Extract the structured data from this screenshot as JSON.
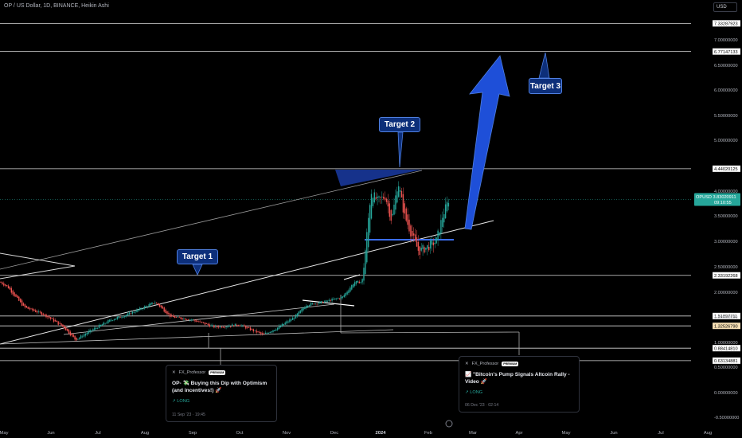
{
  "header": {
    "title": "OP / US Dollar, 1D, BINANCE, Heikin Ashi",
    "currency": "USD"
  },
  "chart_data": {
    "type": "candlestick",
    "ylim": [
      -0.5,
      7.5
    ],
    "y_ticks": [
      "7.00000000",
      "6.50000000",
      "6.00000000",
      "5.50000000",
      "5.00000000",
      "4.00000000",
      "3.50000000",
      "3.00000000",
      "2.50000000",
      "2.00000000",
      "1.50000000",
      "1.00000000",
      "0.50000000",
      "0.00000000",
      "-0.50000000"
    ],
    "x_ticks": [
      "May",
      "Jun",
      "Jul",
      "Aug",
      "Sep",
      "Oct",
      "Nov",
      "Dec",
      "2024",
      "Feb",
      "Mar",
      "Apr",
      "May",
      "Jun",
      "Jul",
      "Aug"
    ],
    "horizontal_levels": [
      {
        "label": "7.33287923",
        "value": 7.333
      },
      {
        "label": "6.77147133",
        "value": 6.771
      },
      {
        "label": "4.44020125",
        "value": 4.44
      },
      {
        "label": "2.33192268",
        "value": 2.332
      },
      {
        "label": "1.51897711",
        "value": 1.519
      },
      {
        "label": "1.32526790",
        "value": 1.325
      },
      {
        "label": "0.88414810",
        "value": 0.884
      },
      {
        "label": "0.63134881",
        "value": 0.631
      }
    ],
    "price_marker": {
      "symbol": "OPUSD",
      "price": "3.83020911",
      "countdown": "09:10:55",
      "value": 3.83
    },
    "targets": [
      {
        "label": "Target 1"
      },
      {
        "label": "Target 2"
      },
      {
        "label": "Target 3"
      }
    ],
    "colors": {
      "up": "#26a69a",
      "down": "#ef5350",
      "arrow": "#1e4fd8",
      "level": "#d8d8d8"
    }
  },
  "ideas": [
    {
      "author": "FX_Professor",
      "badge": "PREMIUM",
      "title": "OP- 💸 Buying this Dip with Optimism (and incentives!) 🚀",
      "direction": "↗ LONG",
      "date": "11 Sep '23 · 19:45"
    },
    {
      "author": "FX_Professor",
      "badge": "PREMIUM",
      "title": "📈 \"Bitcoin's Pump Signals Altcoin Rally - Video 🚀",
      "direction": "↗ LONG",
      "date": "06 Dec '23 · 02:14"
    }
  ]
}
